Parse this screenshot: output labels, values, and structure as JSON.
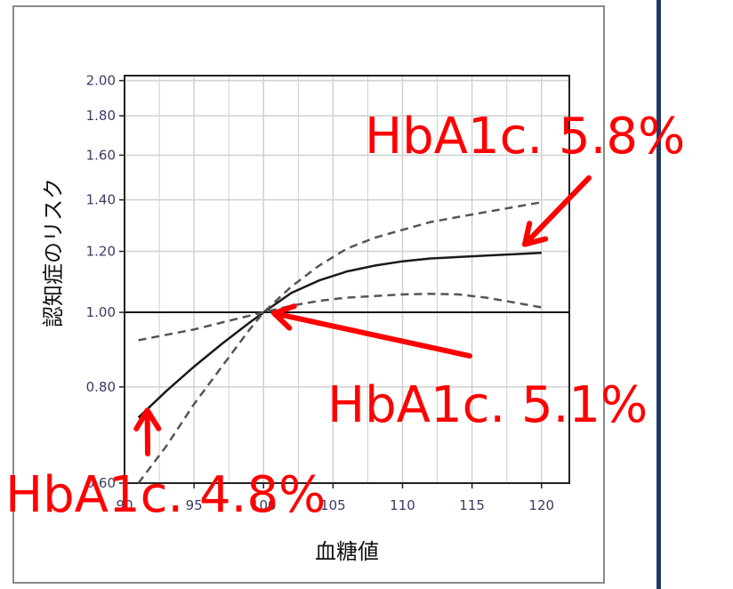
{
  "chart_data": {
    "type": "line",
    "xlabel": "血糖値",
    "ylabel": "認知症のリスク",
    "xlim": [
      90,
      122
    ],
    "ylim": [
      0.6,
      2.03
    ],
    "x_scale": "linear",
    "y_scale": "log",
    "grid": true,
    "x_ticks": [
      90,
      95,
      100,
      105,
      110,
      115,
      120
    ],
    "x_tick_labels": [
      "90",
      "95",
      "100",
      "105",
      "110",
      "115",
      "120"
    ],
    "y_ticks": [
      0.6,
      0.8,
      1.0,
      1.2,
      1.4,
      1.6,
      1.8,
      2.0
    ],
    "y_tick_labels": [
      "0.60",
      "0.80",
      "1.00",
      "1.20",
      "1.40",
      "1.60",
      "1.80",
      "2.00"
    ],
    "reference_line_y": 1.0,
    "series": [
      {
        "style": "solid",
        "x": [
          91,
          93,
          95,
          97,
          99,
          100,
          102,
          104,
          106,
          108,
          110,
          112,
          114,
          116,
          118,
          120
        ],
        "y": [
          0.73,
          0.79,
          0.85,
          0.91,
          0.97,
          1.0,
          1.06,
          1.1,
          1.13,
          1.15,
          1.165,
          1.175,
          1.18,
          1.185,
          1.19,
          1.195
        ]
      },
      {
        "style": "dashed",
        "x": [
          91,
          93,
          95,
          97,
          99,
          100,
          102,
          104,
          106,
          108,
          110,
          112,
          114,
          116,
          118,
          120
        ],
        "y": [
          0.6,
          0.67,
          0.76,
          0.85,
          0.95,
          1.0,
          1.08,
          1.15,
          1.21,
          1.25,
          1.28,
          1.31,
          1.33,
          1.35,
          1.37,
          1.39
        ]
      },
      {
        "style": "dashed",
        "x": [
          91,
          93,
          95,
          97,
          99,
          100,
          102,
          104,
          106,
          108,
          110,
          112,
          114,
          116,
          118,
          120
        ],
        "y": [
          0.92,
          0.935,
          0.95,
          0.97,
          0.99,
          1.0,
          1.02,
          1.035,
          1.045,
          1.05,
          1.055,
          1.057,
          1.055,
          1.045,
          1.03,
          1.015
        ]
      }
    ],
    "annotations": [
      {
        "text": "HbA1c. 5.8%",
        "x": 118.8,
        "y": 1.2
      },
      {
        "text": "HbA1c. 5.1%",
        "x": 100.5,
        "y": 1.0
      },
      {
        "text": "HbA1c. 4.8%",
        "x": 91,
        "y": 0.73
      }
    ],
    "colors": {
      "annotation": "#ff0000",
      "line": "#1a1a1a",
      "dashed": "#555555",
      "grid": "#d0d0d0",
      "divider": "#1f3864"
    }
  }
}
